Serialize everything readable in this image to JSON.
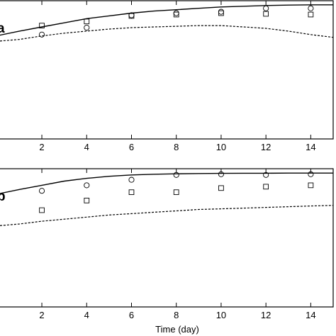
{
  "chart_data": [
    {
      "type": "line",
      "panel_label": "a",
      "xlim": [
        -0.5,
        15
      ],
      "ylim": [
        0,
        1
      ],
      "xticks": [
        2,
        4,
        6,
        8,
        10,
        12,
        14
      ],
      "series": [
        {
          "style": "solid",
          "x": [
            -0.5,
            1,
            2,
            3,
            4,
            5,
            6,
            7,
            8,
            9,
            10,
            11,
            12,
            13,
            14,
            15
          ],
          "y": [
            0.73,
            0.78,
            0.81,
            0.84,
            0.87,
            0.89,
            0.91,
            0.925,
            0.935,
            0.945,
            0.955,
            0.96,
            0.965,
            0.968,
            0.97,
            0.97
          ]
        },
        {
          "style": "dashed",
          "x": [
            -0.5,
            1,
            2,
            3,
            4,
            5,
            6,
            7,
            8,
            9,
            10,
            11,
            12,
            13,
            14,
            15
          ],
          "y": [
            0.7,
            0.72,
            0.745,
            0.765,
            0.78,
            0.795,
            0.805,
            0.81,
            0.815,
            0.82,
            0.82,
            0.81,
            0.8,
            0.78,
            0.755,
            0.735
          ]
        },
        {
          "style": "circle",
          "x": [
            2,
            4,
            6,
            8,
            10,
            12,
            14
          ],
          "y": [
            0.755,
            0.805,
            0.895,
            0.91,
            0.92,
            0.945,
            0.945
          ]
        },
        {
          "style": "square",
          "x": [
            2,
            4,
            6,
            8,
            10,
            12,
            14
          ],
          "y": [
            0.82,
            0.85,
            0.89,
            0.9,
            0.91,
            0.905,
            0.9
          ]
        }
      ]
    },
    {
      "type": "line",
      "panel_label": "b",
      "xlim": [
        -0.5,
        15
      ],
      "ylim": [
        0,
        1
      ],
      "xticks": [
        2,
        4,
        6,
        8,
        10,
        12,
        14
      ],
      "xlabel": "Time (day)",
      "series": [
        {
          "style": "solid",
          "x": [
            -0.5,
            1,
            2,
            3,
            4,
            5,
            6,
            7,
            8,
            9,
            10,
            11,
            12,
            13,
            14,
            15
          ],
          "y": [
            0.8,
            0.85,
            0.88,
            0.91,
            0.93,
            0.945,
            0.955,
            0.96,
            0.963,
            0.965,
            0.966,
            0.967,
            0.967,
            0.968,
            0.968,
            0.968
          ]
        },
        {
          "style": "dashed",
          "x": [
            -0.5,
            1,
            2,
            3,
            4,
            5,
            6,
            7,
            8,
            9,
            10,
            11,
            12,
            13,
            14,
            15
          ],
          "y": [
            0.58,
            0.6,
            0.62,
            0.635,
            0.65,
            0.665,
            0.675,
            0.685,
            0.695,
            0.705,
            0.71,
            0.715,
            0.72,
            0.725,
            0.73,
            0.735
          ]
        },
        {
          "style": "circle",
          "x": [
            2,
            4,
            6,
            8,
            10,
            12,
            14
          ],
          "y": [
            0.84,
            0.88,
            0.92,
            0.955,
            0.96,
            0.955,
            0.96
          ]
        },
        {
          "style": "square",
          "x": [
            2,
            4,
            6,
            8,
            10,
            12,
            14
          ],
          "y": [
            0.7,
            0.77,
            0.83,
            0.83,
            0.86,
            0.87,
            0.88
          ]
        }
      ]
    }
  ]
}
